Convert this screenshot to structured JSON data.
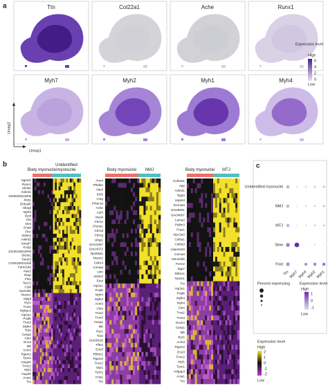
{
  "figure": {
    "panel_labels": [
      "a",
      "b",
      "c"
    ],
    "panel_a": {
      "titles": [
        "Ttn",
        "Col22a1",
        "Ache",
        "Runx1",
        "Myh7",
        "Myh2",
        "Myh1",
        "Myh4"
      ],
      "axis_y": "Umap2",
      "axis_x": "Umap1",
      "legend": {
        "title": "Expression level",
        "high": "High",
        "low": "Low",
        "ticks": [
          6,
          4,
          2,
          0
        ]
      }
    },
    "panel_b": {
      "heatmaps": [
        {
          "groups": [
            "Body myonuclei",
            "Unidentified myonuclei"
          ],
          "genes": [
            "Sgms2",
            "Runx1",
            "Klhl40",
            "Ankrd1",
            "1600002D24Rik",
            "Xirp1",
            "Ehhadh",
            "Hbegf",
            "Myh9",
            "Dysf",
            "Dst",
            "Des",
            "Enah",
            "Flnc",
            "Ablim1",
            "Ankrd2",
            "Smad7",
            "Kcnj2",
            "2310015D24Rik",
            "Slc8a1",
            "Trim63",
            "1700029G01Rik",
            "Fam118a",
            "Nav1",
            "Nrap",
            "Fhl1",
            "Tacc2",
            "Cobl",
            "Samd4b",
            "Ncam1",
            "Mylpf",
            "Ryr1",
            "Tnni2",
            "Mybpc2",
            "Atp2a1",
            "Pvalb",
            "Tnnt3",
            "Mylk4",
            "Trdn",
            "Casq1",
            "Ckm",
            "Eno3",
            "Mb",
            "Actn3",
            "Pgam2",
            "Tpm1",
            "Ampd1",
            "Tnnc2",
            "Myl1",
            "Gapdh",
            "Acta1",
            "Ttn"
          ]
        },
        {
          "groups": [
            "Body myonuclei",
            "NMJ"
          ],
          "genes": [
            "Ano4",
            "Phldb2",
            "Vav3",
            "Etv5",
            "Colq",
            "Prkar1a",
            "Ache",
            "Lrp4",
            "Musk",
            "Chrne",
            "Chrna1",
            "Chrnd",
            "Chrng",
            "Ufsp1",
            "Gm13287",
            "Gm14072",
            "Rps6ka1",
            "Ncam1",
            "Cdk14",
            "Col4a6",
            "Utrn",
            "Ablim2",
            "Etv4",
            "Atp2a1",
            "Pvalb",
            "Myh4",
            "Mylk4",
            "Actn3",
            "Ckm",
            "Tnni2",
            "Tnnt3",
            "Casq1",
            "Mb",
            "Ryr1",
            "Trdn",
            "Gm20616",
            "Pfkm",
            "Eno3",
            "Rbfox1",
            "Pgam2",
            "Tnnc2",
            "Myl1",
            "Tpm1",
            "Acta1",
            "Ttn"
          ]
        },
        {
          "groups": [
            "Body myonuclei",
            "MTJ"
          ],
          "genes": [
            "Col22a1",
            "App",
            "Ankrd1",
            "Tigd4",
            "Usp6nl",
            "Slc24a3",
            "Gm29831",
            "Gm34607",
            "Lama2",
            "Pdlim3",
            "Fras1",
            "Atp13a3",
            "Col6a1",
            "Col6a3",
            "Adamts20",
            "Ctnna3",
            "Dennd4b",
            "Frem2",
            "Itga7",
            "Rbfox1",
            "Ncam1",
            "Ttn",
            "Atp2a1",
            "Pvalb",
            "Mylk4",
            "Myh4",
            "Ckm",
            "Tnni2",
            "Tnnt3",
            "Dock4",
            "Casq1",
            "Mb",
            "Ryr1",
            "Actn3",
            "Pgam2",
            "Eno3",
            "Tnnc2",
            "Myl1",
            "Tpm1",
            "Arfgap3",
            "Acta1",
            "Ttn"
          ]
        }
      ],
      "legend": {
        "title": "Expression level",
        "high": "High",
        "low": "Low",
        "ticks": [
          2,
          1,
          0,
          -1,
          -2
        ]
      }
    },
    "panel_c": {
      "rows": [
        "Unidentified myonuclei",
        "NMJ",
        "MTJ",
        "Slow",
        "Fast"
      ],
      "columns": [
        "Ttn",
        "Myh7",
        "Myh4",
        "Myh2",
        "Myh1"
      ],
      "size_legend_title": "Percent expressing",
      "color_legend": {
        "title": "Expression level",
        "high": "High",
        "low": "Low",
        "ticks": [
          1,
          0,
          -1
        ]
      }
    }
  }
}
